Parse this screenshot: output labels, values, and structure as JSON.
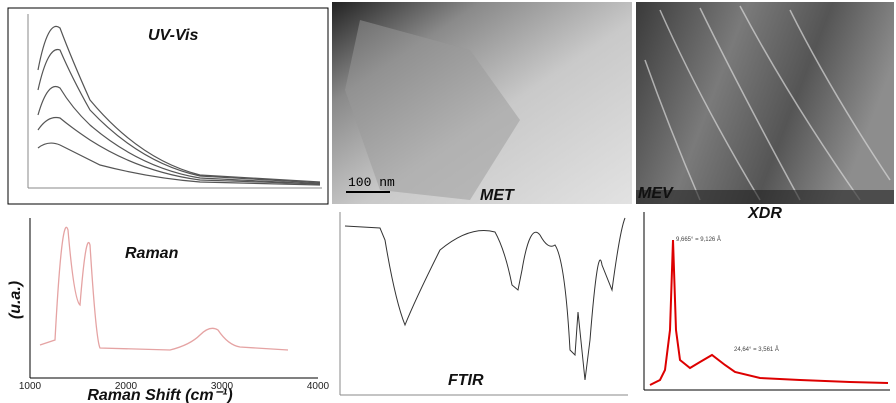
{
  "panels": {
    "uv_vis": {
      "title": "UV-Vis"
    },
    "met": {
      "title": "MET",
      "scale_bar": "100 nm"
    },
    "mev": {
      "title": "MEV"
    },
    "raman": {
      "title": "Raman",
      "y_label": "(u.a.)",
      "x_label": "Raman Shift (cm⁻¹)",
      "x_ticks": [
        1000,
        2000,
        3000,
        4000
      ]
    },
    "ftir": {
      "title": "FTIR"
    },
    "xdr": {
      "title": "XDR",
      "annotations": [
        "9,665° = 9,126 Å",
        "24,64° = 3,561 Å"
      ]
    }
  }
}
